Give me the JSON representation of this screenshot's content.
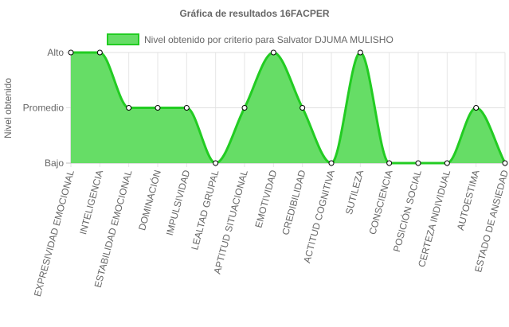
{
  "chart_data": {
    "type": "area",
    "title": "Gráfica de resultados 16FACPER",
    "ylabel": "Nivel obtenido",
    "xlabel": "",
    "y_ticks": [
      "Bajo",
      "Promedio",
      "Alto"
    ],
    "ylim": [
      0,
      2
    ],
    "grid": true,
    "legend_position": "top",
    "categories": [
      "EXPRESIVIDAD EMOCIONAL",
      "INTELIGENCIA",
      "ESTABILIDAD EMOCIONAL",
      "DOMINACIÓN",
      "IMPULSIVIDAD",
      "LEALTAD GRUPAL",
      "APTITUD SITUACIONAL",
      "EMOTIVIDAD",
      "CREDIBILIDAD",
      "ACTITUD COGNITIVA",
      "SUTILEZA",
      "CONSCIENCIA",
      "POSICIÓN SOCIAL",
      "CERTEZA INDIVIDUAL",
      "AUTOESTIMA",
      "ESTADO DE ANSIEDAD"
    ],
    "series": [
      {
        "name": "Nivel obtenido por criterio para Salvator DJUMA MULISHO",
        "values": [
          2,
          2,
          1,
          1,
          1,
          0,
          1,
          2,
          1,
          0,
          2,
          0,
          0,
          0,
          1,
          0
        ],
        "fill_color": "#66dd66",
        "line_color": "#22cc22"
      }
    ]
  }
}
